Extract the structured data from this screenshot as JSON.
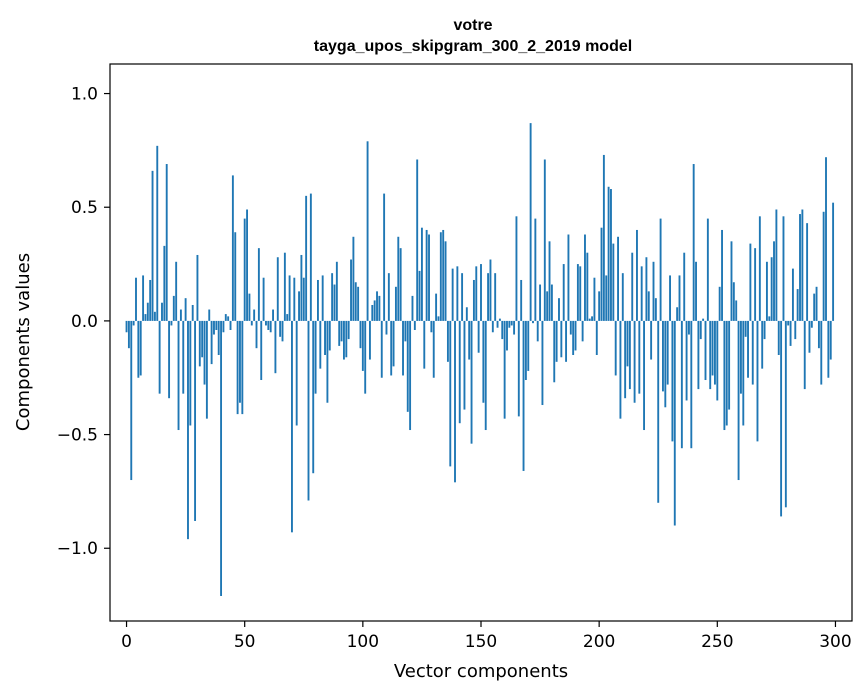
{
  "chart_data": {
    "type": "bar",
    "title_lines": [
      "votre",
      "tayga_upos_skipgram_300_2_2019 model"
    ],
    "xlabel": "Vector components",
    "ylabel": "Components values",
    "xlim": [
      -7,
      307
    ],
    "ylim": [
      -1.32,
      1.13
    ],
    "xticks": [
      0,
      50,
      100,
      150,
      200,
      250,
      300
    ],
    "xtick_labels": [
      "0",
      "50",
      "100",
      "150",
      "200",
      "250",
      "300"
    ],
    "yticks": [
      -1.0,
      -0.5,
      0.0,
      0.5,
      1.0
    ],
    "ytick_labels": [
      "−1.0",
      "−0.5",
      "0.0",
      "0.5",
      "1.0"
    ],
    "bar_color": "#1f77b4",
    "values": [
      -0.05,
      -0.12,
      -0.7,
      -0.02,
      0.19,
      -0.25,
      -0.24,
      0.2,
      0.03,
      0.08,
      0.18,
      0.66,
      0.04,
      0.77,
      -0.32,
      0.08,
      0.33,
      0.69,
      -0.34,
      -0.02,
      0.11,
      0.26,
      -0.48,
      0.05,
      -0.32,
      0.1,
      -0.96,
      -0.46,
      0.07,
      -0.88,
      0.29,
      -0.2,
      -0.16,
      -0.28,
      -0.43,
      0.05,
      -0.19,
      -0.06,
      -0.04,
      -0.15,
      -1.21,
      -0.05,
      0.03,
      0.02,
      -0.04,
      0.64,
      0.39,
      -0.41,
      -0.36,
      -0.41,
      0.45,
      0.49,
      0.12,
      -0.02,
      0.05,
      -0.12,
      0.32,
      -0.26,
      0.19,
      -0.02,
      -0.04,
      -0.05,
      0.05,
      -0.23,
      0.28,
      -0.07,
      -0.09,
      0.3,
      0.03,
      0.2,
      -0.93,
      0.19,
      -0.46,
      0.13,
      0.29,
      0.19,
      0.55,
      -0.79,
      0.56,
      -0.67,
      -0.32,
      0.18,
      -0.21,
      0.2,
      -0.15,
      -0.36,
      -0.13,
      0.21,
      0.16,
      0.26,
      -0.11,
      -0.09,
      -0.17,
      -0.16,
      -0.08,
      0.27,
      0.37,
      0.17,
      0.15,
      -0.12,
      -0.22,
      -0.32,
      0.79,
      -0.17,
      0.07,
      0.09,
      0.13,
      0.11,
      -0.25,
      0.56,
      -0.06,
      0.21,
      -0.24,
      -0.2,
      0.15,
      0.37,
      0.32,
      -0.24,
      -0.09,
      -0.4,
      -0.48,
      0.11,
      -0.04,
      0.71,
      0.22,
      0.41,
      -0.21,
      0.4,
      0.38,
      -0.05,
      -0.25,
      0.12,
      0.02,
      0.39,
      0.4,
      0.35,
      -0.18,
      -0.64,
      0.23,
      -0.71,
      0.24,
      -0.45,
      0.21,
      -0.39,
      0.06,
      -0.17,
      -0.54,
      0.18,
      0.24,
      -0.14,
      0.25,
      -0.36,
      -0.48,
      0.21,
      0.27,
      -0.05,
      0.21,
      -0.03,
      0.01,
      -0.08,
      -0.43,
      -0.13,
      -0.03,
      -0.02,
      -0.06,
      0.46,
      -0.42,
      0.18,
      -0.66,
      -0.26,
      -0.22,
      0.87,
      -0.01,
      0.45,
      -0.09,
      0.16,
      -0.37,
      0.71,
      0.13,
      0.35,
      0.16,
      -0.27,
      -0.18,
      0.1,
      -0.16,
      0.25,
      -0.18,
      0.38,
      -0.06,
      -0.15,
      -0.13,
      0.25,
      0.24,
      -0.09,
      0.38,
      0.3,
      0.01,
      0.02,
      0.19,
      -0.15,
      0.13,
      0.41,
      0.73,
      0.2,
      0.59,
      0.58,
      0.34,
      -0.24,
      0.37,
      -0.43,
      0.21,
      -0.34,
      -0.2,
      -0.3,
      0.3,
      -0.36,
      0.4,
      -0.32,
      0.24,
      -0.48,
      0.28,
      0.13,
      -0.17,
      0.26,
      0.1,
      -0.8,
      0.45,
      -0.31,
      -0.38,
      -0.28,
      0.2,
      -0.53,
      -0.9,
      0.06,
      0.2,
      -0.56,
      0.3,
      -0.35,
      -0.06,
      -0.56,
      0.69,
      0.26,
      -0.3,
      -0.08,
      0.01,
      -0.26,
      0.45,
      -0.3,
      -0.24,
      -0.28,
      -0.35,
      0.15,
      0.4,
      -0.48,
      -0.46,
      -0.39,
      0.35,
      0.17,
      0.09,
      -0.7,
      -0.32,
      -0.46,
      -0.07,
      -0.25,
      0.34,
      -0.28,
      0.32,
      -0.53,
      0.46,
      -0.21,
      -0.08,
      0.26,
      0.02,
      0.28,
      0.35,
      0.49,
      -0.15,
      -0.86,
      0.46,
      -0.82,
      -0.02,
      -0.11,
      0.23,
      -0.08,
      0.14,
      0.47,
      0.49,
      -0.3,
      0.43,
      -0.14,
      -0.03,
      0.12,
      0.15,
      -0.12,
      -0.28,
      0.48,
      0.72,
      -0.25,
      -0.17,
      0.52
    ]
  }
}
